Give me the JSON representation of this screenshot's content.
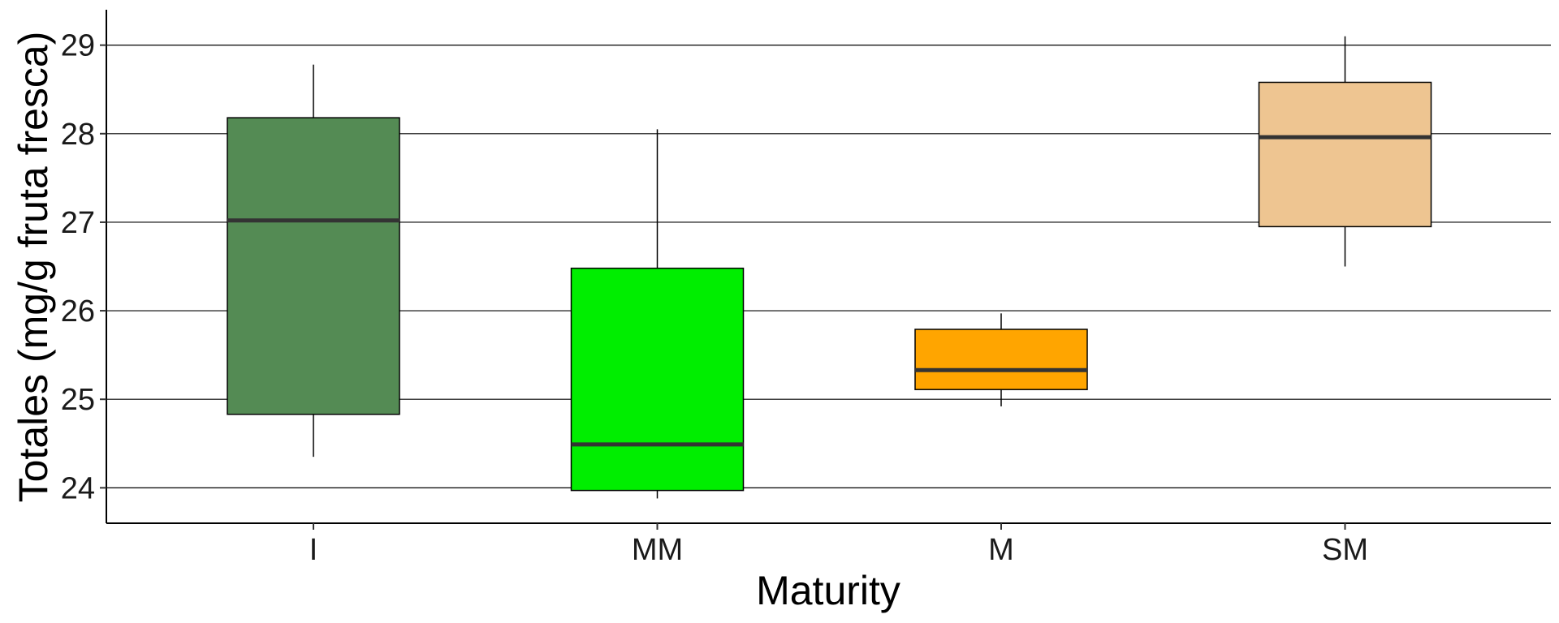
{
  "chart_data": {
    "type": "box",
    "xlabel": "Maturity",
    "ylabel": "Totales (mg/g fruta fresca)",
    "ylim": [
      23.6,
      29.4
    ],
    "yticks": [
      24,
      25,
      26,
      27,
      28,
      29
    ],
    "grid": "horizontal major",
    "legend": "none",
    "categories": [
      "I",
      "MM",
      "M",
      "SM"
    ],
    "boxes": [
      {
        "category": "I",
        "min": 24.35,
        "q1": 24.83,
        "median": 27.02,
        "q3": 28.18,
        "max": 28.78,
        "color": "#548B54"
      },
      {
        "category": "MM",
        "min": 23.88,
        "q1": 23.97,
        "median": 24.49,
        "q3": 26.48,
        "max": 28.05,
        "color": "#00EE00"
      },
      {
        "category": "M",
        "min": 24.92,
        "q1": 25.11,
        "median": 25.33,
        "q3": 25.79,
        "max": 25.97,
        "color": "#FFA500"
      },
      {
        "category": "SM",
        "min": 26.5,
        "q1": 26.95,
        "median": 27.96,
        "q3": 28.58,
        "max": 29.1,
        "color": "#EEC591"
      }
    ]
  }
}
